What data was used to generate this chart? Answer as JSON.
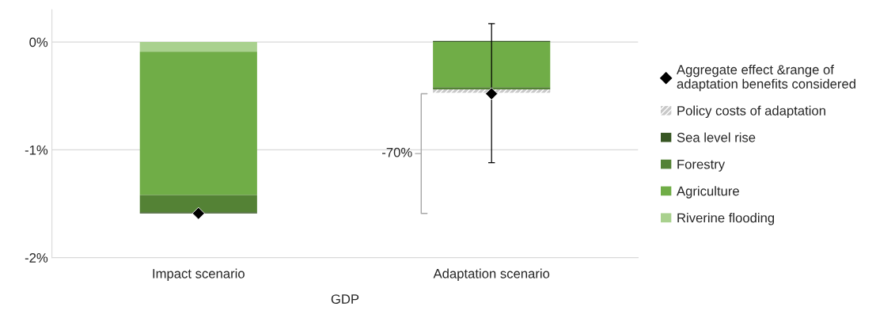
{
  "chart_data": {
    "type": "bar",
    "stacked": true,
    "xlabel": "GDP",
    "categories": [
      "Impact scenario",
      "Adaptation scenario"
    ],
    "series": [
      {
        "name": "Riverine flooding",
        "color": "#a9d18e",
        "values": [
          -0.09,
          0
        ]
      },
      {
        "name": "Agriculture",
        "color": "#70ad47",
        "values": [
          -1.33,
          -0.42
        ]
      },
      {
        "name": "Forestry",
        "color": "#548235",
        "values": [
          -0.16,
          -0.02
        ]
      },
      {
        "name": "Sea level rise",
        "color": "#375623",
        "values": [
          -0.01,
          0.01
        ]
      },
      {
        "name": "Policy costs of adaptation",
        "color": "#c8c8c8",
        "values": [
          0,
          -0.03
        ]
      },
      {
        "name": "Aggregate effect &range of adaptation benefits considered",
        "type": "scatter",
        "color": "#000000",
        "marker": "diamond",
        "values": [
          -1.59,
          -0.48
        ],
        "errors": [
          null,
          [
            -1.12,
            0.17
          ]
        ]
      }
    ],
    "ylim": [
      -2,
      0.3
    ],
    "yticks": [
      {
        "value": -2,
        "label": "-2%"
      },
      {
        "value": -1,
        "label": "-1%"
      },
      {
        "value": 0,
        "label": "0%"
      }
    ],
    "grid": "y",
    "legend": "right",
    "annotations": [
      "-70%"
    ]
  }
}
